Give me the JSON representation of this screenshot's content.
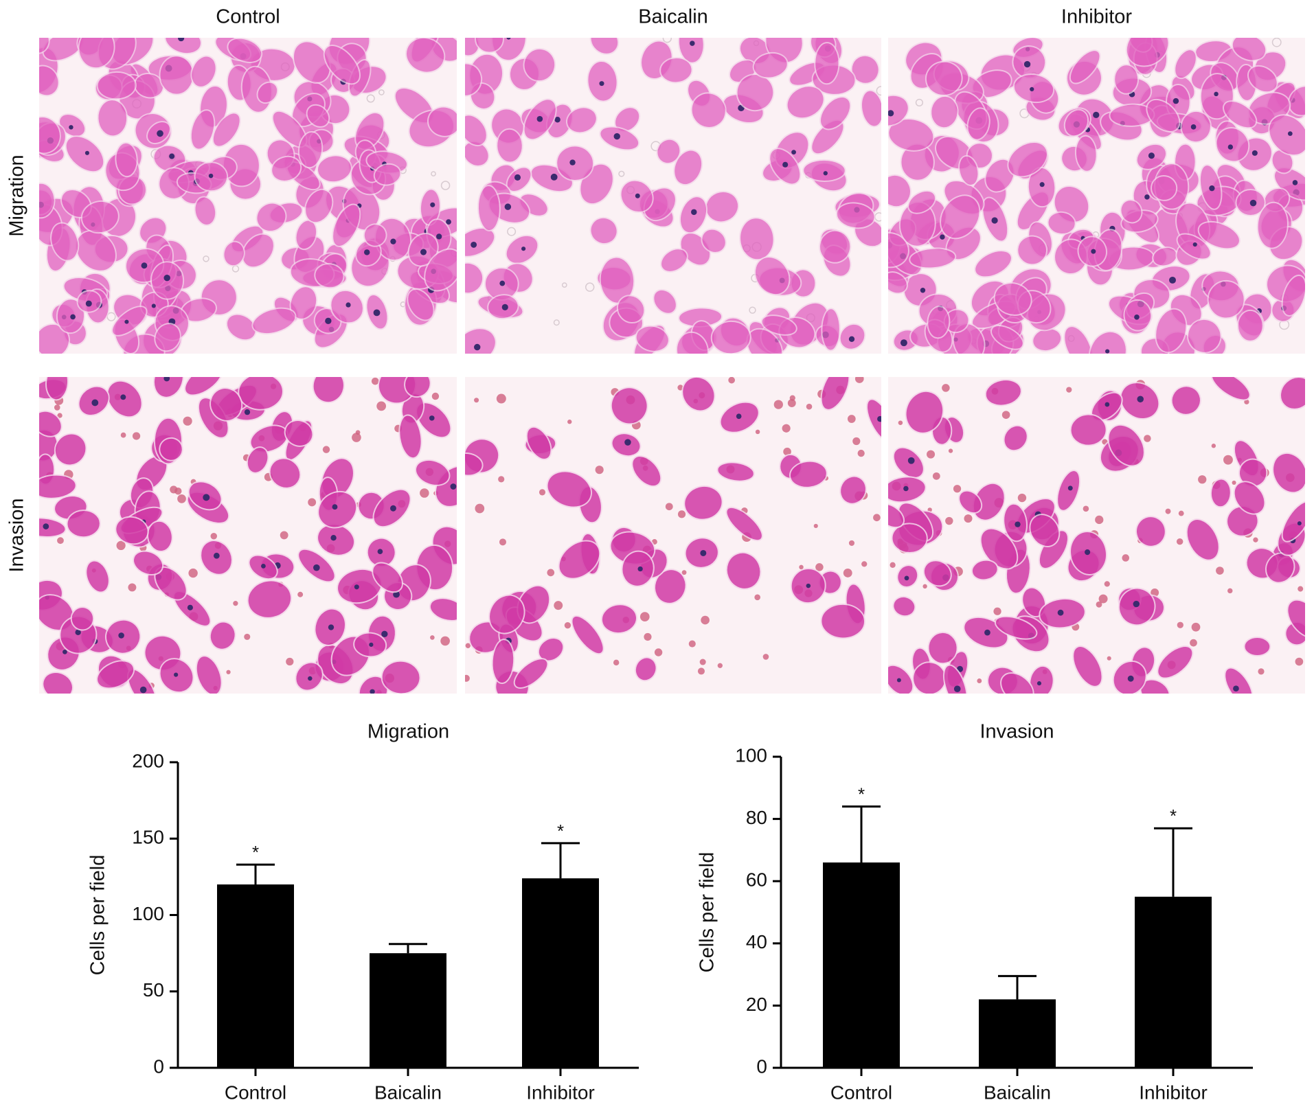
{
  "image_panel": {
    "columns": [
      "Control",
      "Baicalin",
      "Inhibitor"
    ],
    "rows": [
      "Migration",
      "Invasion"
    ]
  },
  "chart_data": [
    {
      "type": "bar",
      "title": "Migration",
      "y_label": "Cells per field",
      "categories": [
        "Control",
        "Baicalin",
        "Inhibitor"
      ],
      "values": [
        120,
        75,
        124
      ],
      "errors": [
        13,
        6,
        23
      ],
      "significance": [
        "*",
        null,
        "*"
      ],
      "color": "#000000",
      "ylim": [
        0,
        200
      ],
      "yticks": [
        0,
        50,
        100,
        150,
        200
      ]
    },
    {
      "type": "bar",
      "title": "Invasion",
      "y_label": "Cells per field",
      "categories": [
        "Control",
        "Baicalin",
        "Inhibitor"
      ],
      "values": [
        66,
        22,
        55
      ],
      "errors": [
        18,
        7.5,
        22
      ],
      "significance": [
        "*",
        null,
        "*"
      ],
      "color": "#000000",
      "ylim": [
        0,
        100
      ],
      "yticks": [
        0,
        20,
        40,
        60,
        80,
        100
      ]
    }
  ]
}
